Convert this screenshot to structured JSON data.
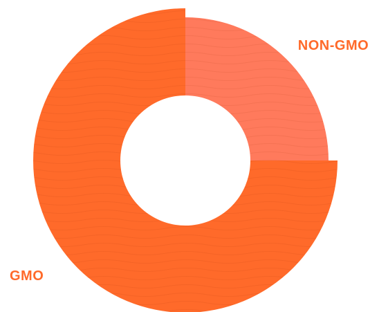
{
  "chart_data": {
    "type": "pie",
    "variant": "donut",
    "slices": [
      {
        "label": "NON-GMO",
        "value": 25,
        "color": "#FF7A5C"
      },
      {
        "label": "GMO",
        "value": 75,
        "color": "#FF6A2A"
      }
    ],
    "title": "",
    "legend": "none",
    "label_color": "#FF6A2A"
  }
}
